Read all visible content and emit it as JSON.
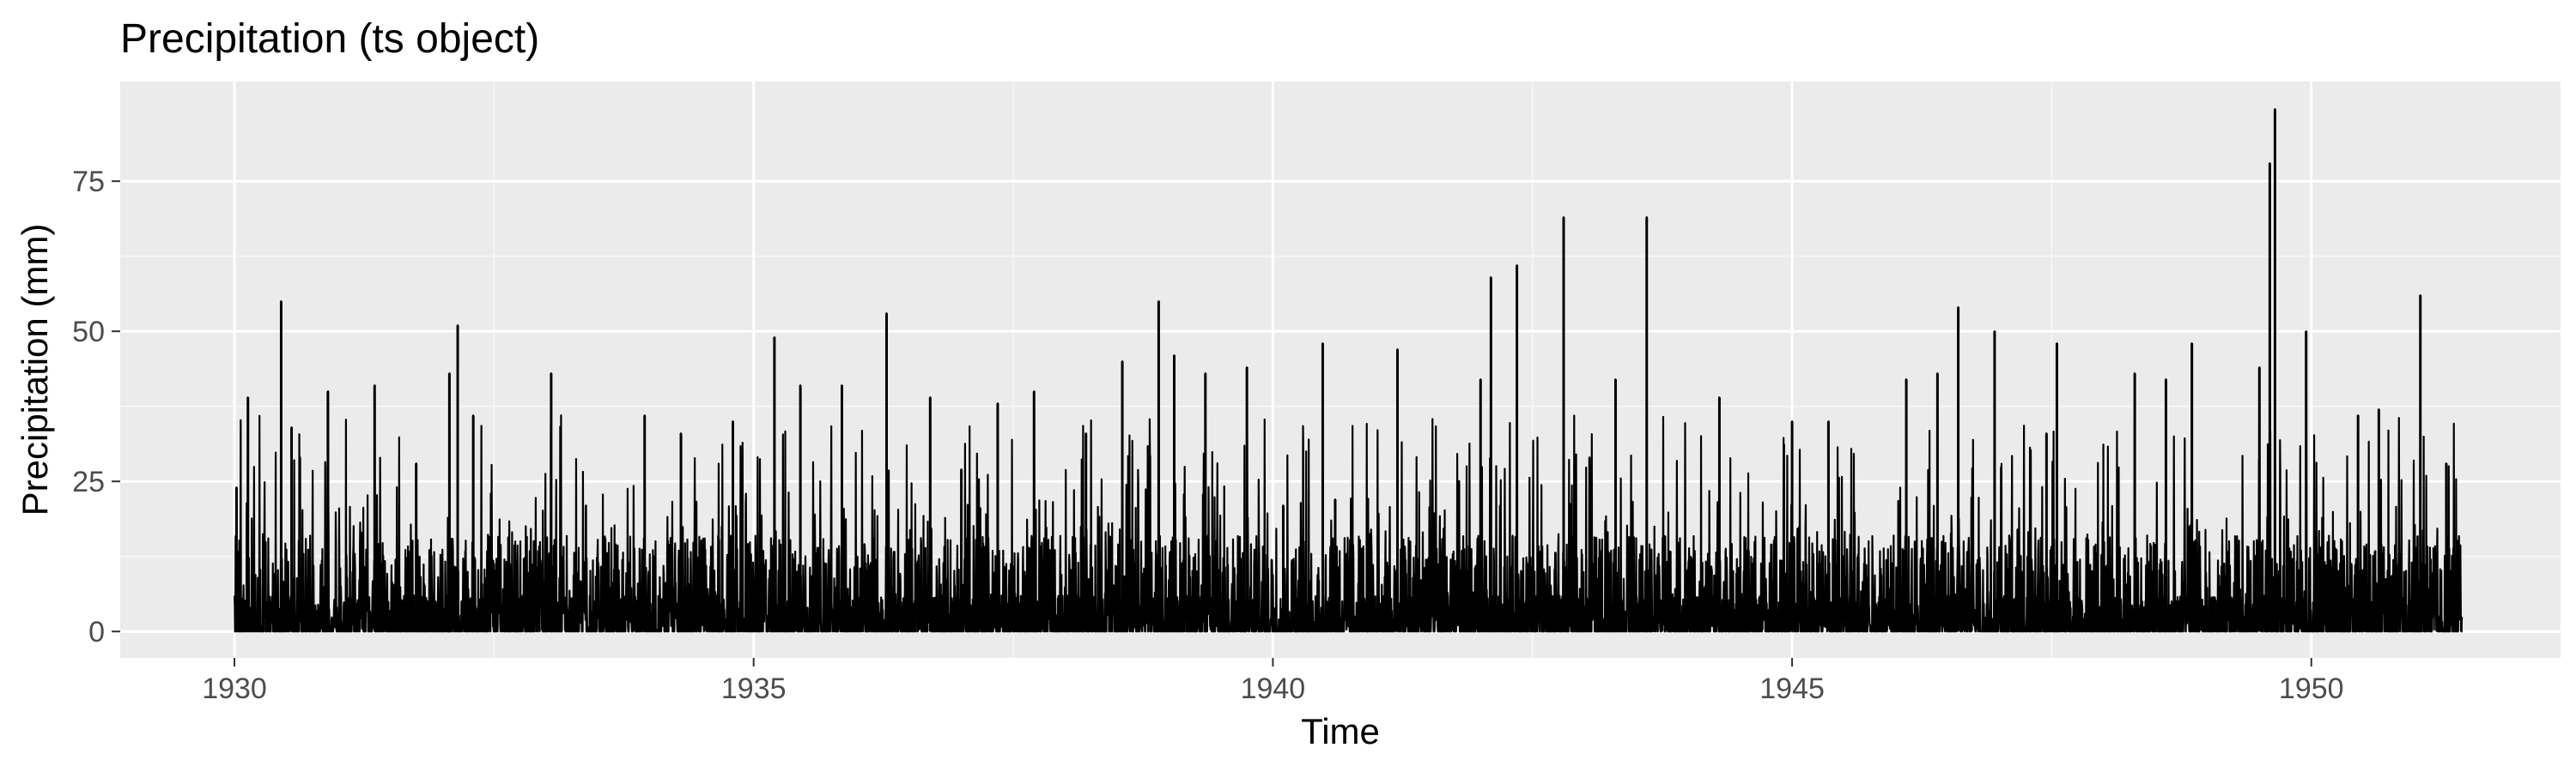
{
  "chart_data": {
    "type": "line",
    "title": "Precipitation (ts object)",
    "xlabel": "Time",
    "ylabel": "Precipitation (mm)",
    "xlim": [
      1928.9,
      1952.4
    ],
    "ylim": [
      -4.4,
      91.6
    ],
    "x_ticks": [
      1930,
      1935,
      1940,
      1945,
      1950
    ],
    "x_tick_labels": [
      "1930",
      "1935",
      "1940",
      "1945",
      "1950"
    ],
    "y_ticks": [
      0,
      25,
      50,
      75
    ],
    "y_tick_labels": [
      "0",
      "25",
      "50",
      "75"
    ],
    "x_start": 1930.0,
    "x_end": 1951.45,
    "grid": true,
    "legend": "none",
    "series": [
      {
        "peaks": [
          [
            1930.02,
            24
          ],
          [
            1930.13,
            39
          ],
          [
            1930.45,
            55
          ],
          [
            1930.55,
            34
          ],
          [
            1930.9,
            40
          ],
          [
            1931.35,
            41
          ],
          [
            1931.75,
            28
          ],
          [
            1932.07,
            43
          ],
          [
            1932.15,
            51
          ],
          [
            1932.3,
            36
          ],
          [
            1933.05,
            43
          ],
          [
            1933.95,
            36
          ],
          [
            1934.3,
            33
          ],
          [
            1934.8,
            35
          ],
          [
            1935.2,
            49
          ],
          [
            1935.45,
            41
          ],
          [
            1935.85,
            41
          ],
          [
            1936.28,
            53
          ],
          [
            1936.7,
            39
          ],
          [
            1937.0,
            27
          ],
          [
            1937.35,
            38
          ],
          [
            1937.7,
            40
          ],
          [
            1938.2,
            33
          ],
          [
            1938.55,
            45
          ],
          [
            1938.9,
            55
          ],
          [
            1939.05,
            46
          ],
          [
            1939.35,
            43
          ],
          [
            1939.75,
            44
          ],
          [
            1940.1,
            21
          ],
          [
            1940.48,
            48
          ],
          [
            1940.6,
            22
          ],
          [
            1941.2,
            47
          ],
          [
            1942.0,
            42
          ],
          [
            1942.1,
            59
          ],
          [
            1942.35,
            61
          ],
          [
            1942.8,
            69
          ],
          [
            1943.05,
            29
          ],
          [
            1943.3,
            42
          ],
          [
            1943.6,
            69
          ],
          [
            1944.3,
            39
          ],
          [
            1945.0,
            35
          ],
          [
            1945.35,
            35
          ],
          [
            1946.1,
            42
          ],
          [
            1946.4,
            43
          ],
          [
            1946.6,
            54
          ],
          [
            1946.95,
            50
          ],
          [
            1947.45,
            33
          ],
          [
            1947.55,
            48
          ],
          [
            1948.3,
            43
          ],
          [
            1948.6,
            42
          ],
          [
            1948.85,
            48
          ],
          [
            1949.5,
            44
          ],
          [
            1949.6,
            78
          ],
          [
            1949.65,
            87
          ],
          [
            1949.95,
            50
          ],
          [
            1950.45,
            36
          ],
          [
            1950.65,
            37
          ],
          [
            1951.05,
            56
          ],
          [
            1951.3,
            28
          ]
        ]
      }
    ]
  },
  "colors": {
    "panel_background": "#ebebeb",
    "grid_major": "#ffffff",
    "grid_minor": "#f5f5f5",
    "line": "#000000",
    "tick_text": "#4d4d4d",
    "tick_mark": "#333333"
  }
}
